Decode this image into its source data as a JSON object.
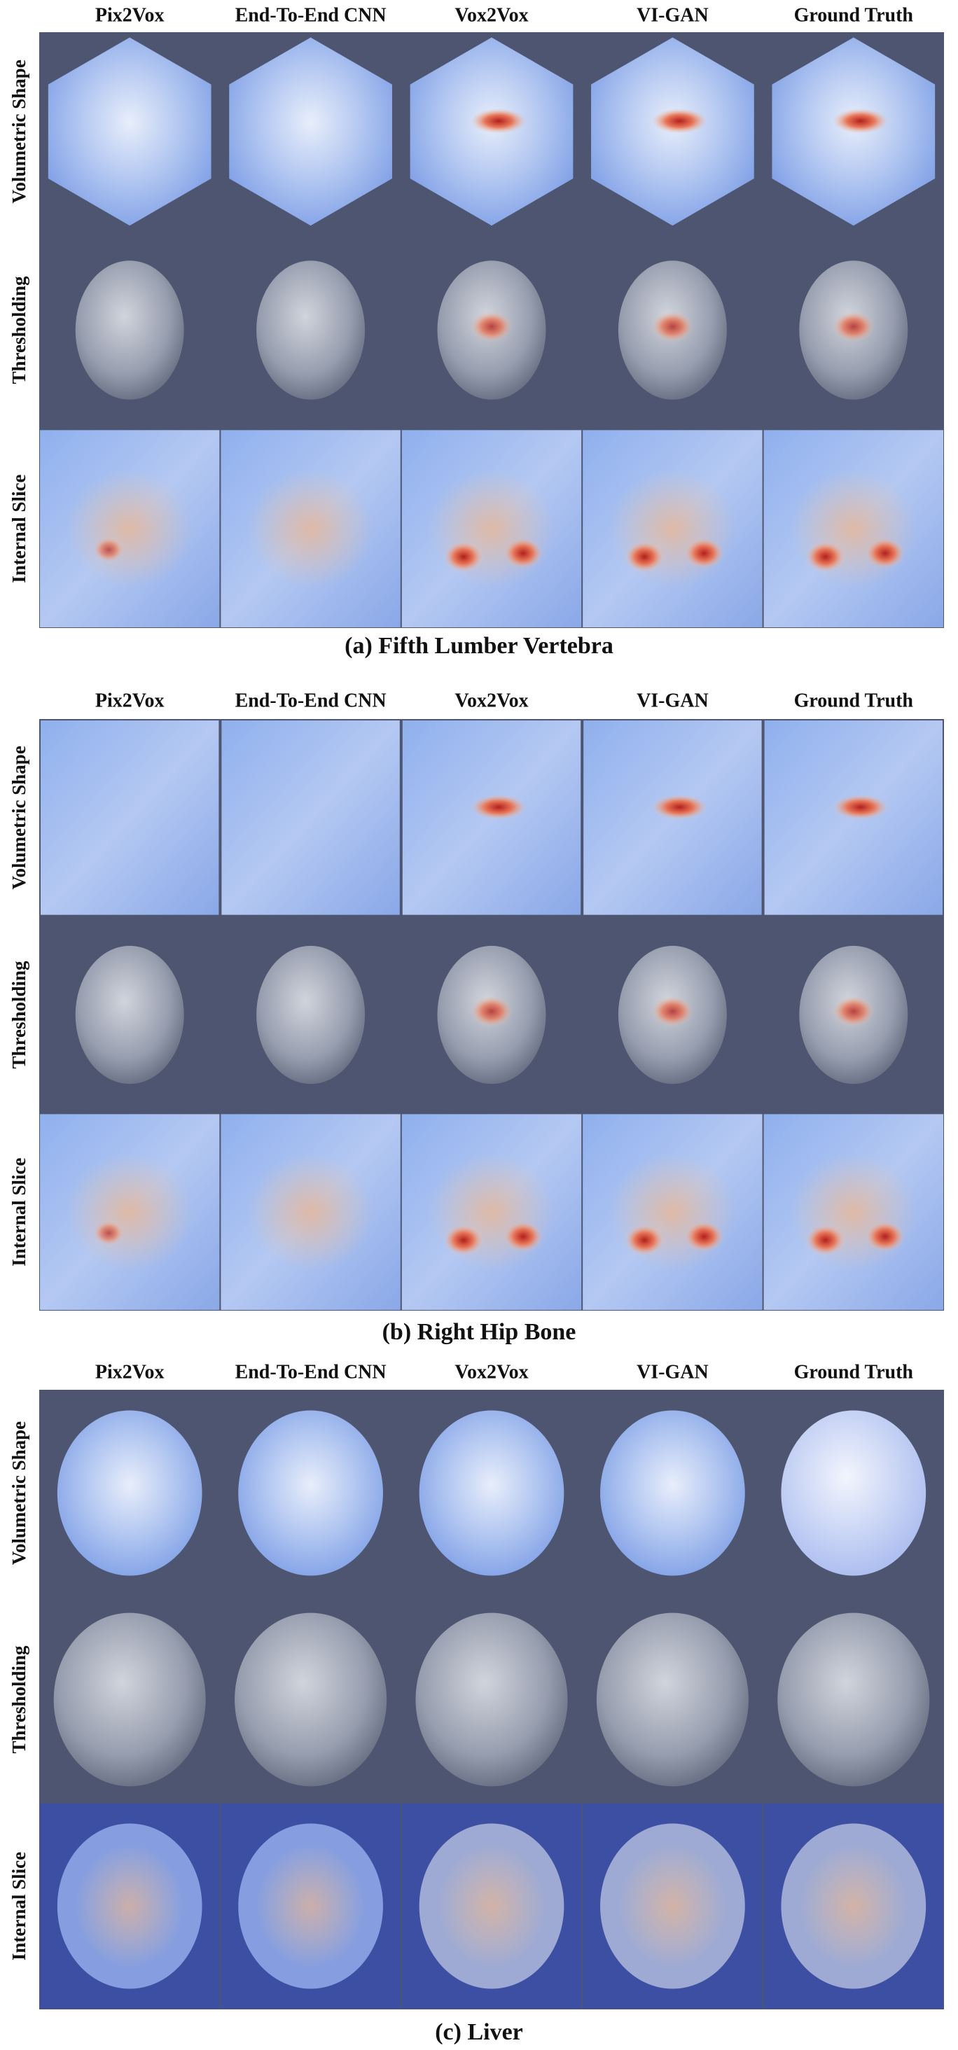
{
  "panels": [
    {
      "columns": [
        "Pix2Vox",
        "End-To-End CNN",
        "Vox2Vox",
        "VI-GAN",
        "Ground Truth"
      ],
      "rows": [
        "Volumetric Shape",
        "Thresholding",
        "Internal Slice"
      ],
      "caption": "(a) Fifth Lumber Vertebra"
    },
    {
      "columns": [
        "Pix2Vox",
        "End-To-End CNN",
        "Vox2Vox",
        "VI-GAN",
        "Ground Truth"
      ],
      "rows": [
        "Volumetric Shape",
        "Thresholding",
        "Internal Slice"
      ],
      "caption": "(b) Right Hip Bone"
    },
    {
      "columns": [
        "Pix2Vox",
        "End-To-End CNN",
        "Vox2Vox",
        "VI-GAN",
        "Ground Truth"
      ],
      "rows": [
        "Volumetric Shape",
        "Thresholding",
        "Internal Slice"
      ],
      "caption": "(c) Liver"
    }
  ]
}
